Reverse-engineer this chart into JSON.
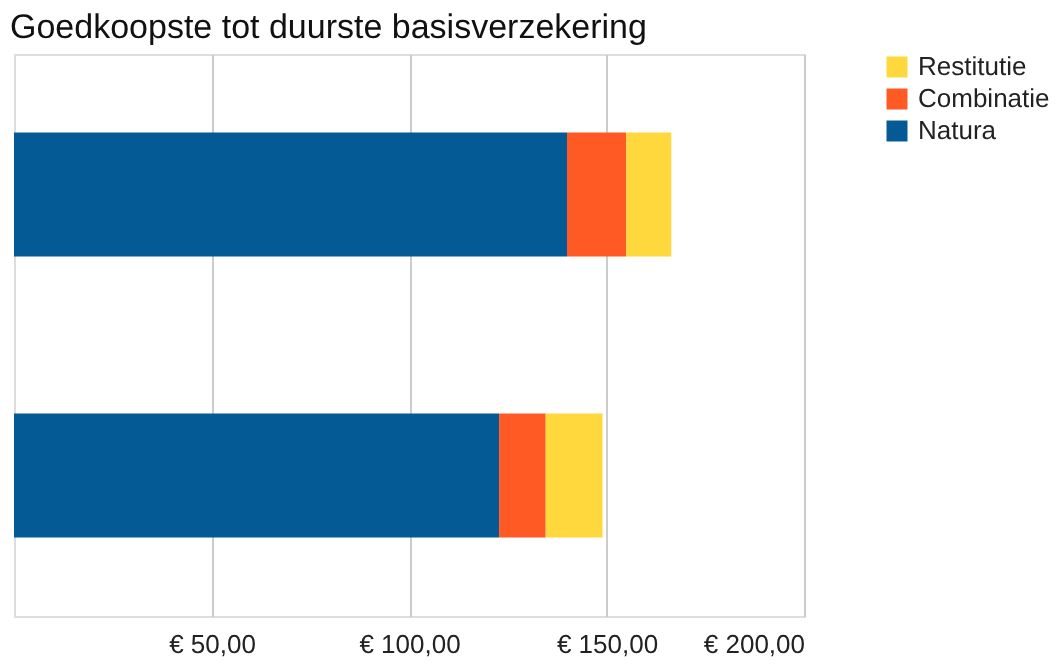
{
  "chart_data": {
    "type": "bar",
    "orientation": "horizontal",
    "stacked": true,
    "title": "Goedkoopste tot duurste basisverzekering",
    "categories": [
      null,
      null
    ],
    "series": [
      {
        "name": "Natura",
        "color": "#045a94",
        "values": [
          140,
          122.8
        ]
      },
      {
        "name": "Combinatie",
        "color": "#ff5a24",
        "values": [
          15,
          11.8
        ]
      },
      {
        "name": "Restitutie",
        "color": "#ffd83d",
        "values": [
          11.4,
          14.4
        ]
      }
    ],
    "xlim": [
      0,
      200
    ],
    "xticks": [
      {
        "value": 50,
        "label": "€ 50,00"
      },
      {
        "value": 100,
        "label": "€ 100,00"
      },
      {
        "value": 150,
        "label": "€ 150,00"
      },
      {
        "value": 200,
        "label": "€ 200,00"
      }
    ],
    "grid": "x",
    "legend": "right"
  }
}
